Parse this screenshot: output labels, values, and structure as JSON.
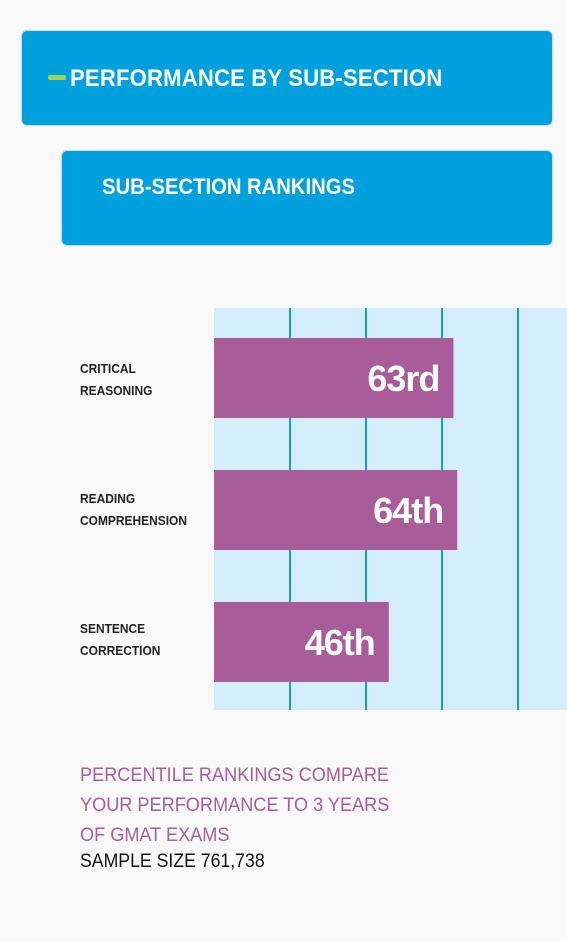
{
  "header": {
    "title": "PERFORMANCE BY SUB-SECTION"
  },
  "subheader": {
    "title": "SUB-SECTION RANKINGS"
  },
  "chart_data": {
    "type": "bar",
    "orientation": "horizontal",
    "categories": [
      [
        "CRITICAL",
        "REASONING"
      ],
      [
        "READING",
        "COMPREHENSION"
      ],
      [
        "SENTENCE",
        "CORRECTION"
      ]
    ],
    "values": [
      63,
      64,
      46
    ],
    "value_labels": [
      "63rd",
      "64th",
      "46th"
    ],
    "xlim": [
      0,
      100
    ],
    "grid": true,
    "colors": {
      "bar": "#a85c9a",
      "background": "#d3eefa",
      "grid": "#1a9cbf",
      "label": "#ffffff"
    }
  },
  "footnote": {
    "lines": [
      "PERCENTILE RANKINGS COMPARE",
      "YOUR PERFORMANCE TO 3 YEARS",
      "OF GMAT EXAMS"
    ],
    "sample": "SAMPLE SIZE 761,738"
  }
}
